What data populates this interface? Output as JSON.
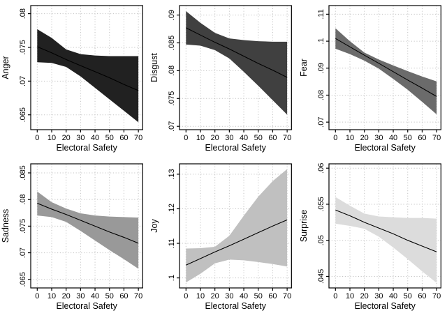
{
  "figure": {
    "background_color": "#ffffff",
    "frame_color": "#000000",
    "grid_color": "#c4c4c4",
    "fit_line_color": "#000000",
    "xlabel": "Electoral Safety",
    "xlim": [
      -4.5,
      73
    ],
    "x_ticks": [
      0,
      10,
      20,
      30,
      40,
      50,
      60,
      70
    ],
    "x_tick_labels": [
      "0",
      "10",
      "20",
      "30",
      "40",
      "50",
      "60",
      "70"
    ],
    "grid": "dotted, both axes",
    "legend": "none",
    "layout": "2 rows x 3 columns of emotion panels"
  },
  "chart_data": [
    {
      "type": "area",
      "title": "",
      "ylabel": "Anger",
      "xlabel": "Electoral Safety",
      "band_color": "#212121",
      "x": [
        0,
        10,
        20,
        30,
        40,
        50,
        60,
        70
      ],
      "fit": [
        0.0751,
        0.0742,
        0.0732,
        0.0723,
        0.0714,
        0.0705,
        0.0695,
        0.0686
      ],
      "ci_upper": [
        0.0777,
        0.0764,
        0.0747,
        0.074,
        0.0738,
        0.0737,
        0.0737,
        0.0737
      ],
      "ci_lower": [
        0.0728,
        0.0727,
        0.0721,
        0.0707,
        0.069,
        0.0673,
        0.0656,
        0.0639
      ],
      "y_ticks": [
        0.065,
        0.07,
        0.075,
        0.08
      ],
      "y_tick_labels": [
        ".065",
        ".07",
        ".075",
        ".08"
      ],
      "ylim": [
        0.0628,
        0.0812
      ]
    },
    {
      "type": "area",
      "title": "",
      "ylabel": "Disgust",
      "xlabel": "Electoral Safety",
      "band_color": "#404040",
      "x": [
        0,
        10,
        20,
        30,
        40,
        50,
        60,
        70
      ],
      "fit": [
        0.0877,
        0.0864,
        0.0851,
        0.0839,
        0.0826,
        0.0813,
        0.0801,
        0.0788
      ],
      "ci_upper": [
        0.0907,
        0.0886,
        0.0868,
        0.0858,
        0.0855,
        0.0853,
        0.0852,
        0.0852
      ],
      "ci_lower": [
        0.0847,
        0.0845,
        0.0837,
        0.0822,
        0.0798,
        0.0773,
        0.0747,
        0.0721
      ],
      "y_ticks": [
        0.07,
        0.075,
        0.08,
        0.085,
        0.09
      ],
      "y_tick_labels": [
        ".07",
        ".075",
        ".08",
        ".085",
        ".09"
      ],
      "ylim": [
        0.0694,
        0.0917
      ]
    },
    {
      "type": "area",
      "title": "",
      "ylabel": "Fear",
      "xlabel": "Electoral Safety",
      "band_color": "#6b6b6b",
      "x": [
        0,
        10,
        20,
        30,
        40,
        50,
        60,
        70
      ],
      "fit": [
        0.101,
        0.0979,
        0.0948,
        0.0918,
        0.0887,
        0.0856,
        0.0826,
        0.0795
      ],
      "ci_upper": [
        0.1048,
        0.1,
        0.0958,
        0.0932,
        0.091,
        0.0889,
        0.0869,
        0.0851
      ],
      "ci_lower": [
        0.0972,
        0.0952,
        0.0928,
        0.0898,
        0.086,
        0.082,
        0.0775,
        0.0729
      ],
      "y_ticks": [
        0.07,
        0.08,
        0.09,
        0.1,
        0.11
      ],
      "y_tick_labels": [
        ".07",
        ".08",
        ".09",
        ".1",
        ".11"
      ],
      "ylim": [
        0.0672,
        0.1132
      ]
    },
    {
      "type": "area",
      "title": "",
      "ylabel": "Sadness",
      "xlabel": "Electoral Safety",
      "band_color": "#999999",
      "x": [
        0,
        10,
        20,
        30,
        40,
        50,
        60,
        70
      ],
      "fit": [
        0.0793,
        0.0782,
        0.0772,
        0.0761,
        0.075,
        0.0739,
        0.0729,
        0.0718
      ],
      "ci_upper": [
        0.0815,
        0.0795,
        0.0783,
        0.0774,
        0.077,
        0.0768,
        0.0767,
        0.0766
      ],
      "ci_lower": [
        0.077,
        0.0767,
        0.0758,
        0.0741,
        0.0723,
        0.0705,
        0.0688,
        0.067
      ],
      "y_ticks": [
        0.065,
        0.07,
        0.075,
        0.08,
        0.085
      ],
      "y_tick_labels": [
        ".065",
        ".07",
        ".075",
        ".08",
        ".085"
      ],
      "ylim": [
        0.0634,
        0.0867
      ]
    },
    {
      "type": "area",
      "title": "",
      "ylabel": "Joy",
      "xlabel": "Electoral Safety",
      "band_color": "#c0c0c0",
      "x": [
        0,
        10,
        20,
        30,
        40,
        50,
        60,
        70
      ],
      "fit": [
        0.1037,
        0.1056,
        0.1075,
        0.1093,
        0.1112,
        0.1131,
        0.115,
        0.1168
      ],
      "ci_upper": [
        0.1085,
        0.1086,
        0.109,
        0.1122,
        0.118,
        0.1235,
        0.128,
        0.1315
      ],
      "ci_lower": [
        0.0987,
        0.1012,
        0.1042,
        0.1053,
        0.1051,
        0.1046,
        0.104,
        0.1033
      ],
      "y_ticks": [
        0.1,
        0.11,
        0.12,
        0.13
      ],
      "y_tick_labels": [
        ".1",
        ".11",
        ".12",
        ".13"
      ],
      "ylim": [
        0.0971,
        0.133
      ]
    },
    {
      "type": "area",
      "title": "",
      "ylabel": "Surprise",
      "xlabel": "Electoral Safety",
      "band_color": "#dcdcdc",
      "x": [
        0,
        10,
        20,
        30,
        40,
        50,
        60,
        70
      ],
      "fit": [
        0.0542,
        0.0534,
        0.0525,
        0.0517,
        0.0509,
        0.05,
        0.0492,
        0.0484
      ],
      "ci_upper": [
        0.056,
        0.0548,
        0.0537,
        0.0533,
        0.0532,
        0.0531,
        0.0531,
        0.053
      ],
      "ci_lower": [
        0.0523,
        0.052,
        0.0516,
        0.0505,
        0.049,
        0.0474,
        0.0457,
        0.0441
      ],
      "y_ticks": [
        0.045,
        0.05,
        0.055,
        0.06
      ],
      "y_tick_labels": [
        ".045",
        ".05",
        ".055",
        ".06"
      ],
      "ylim": [
        0.0434,
        0.0606
      ]
    }
  ]
}
